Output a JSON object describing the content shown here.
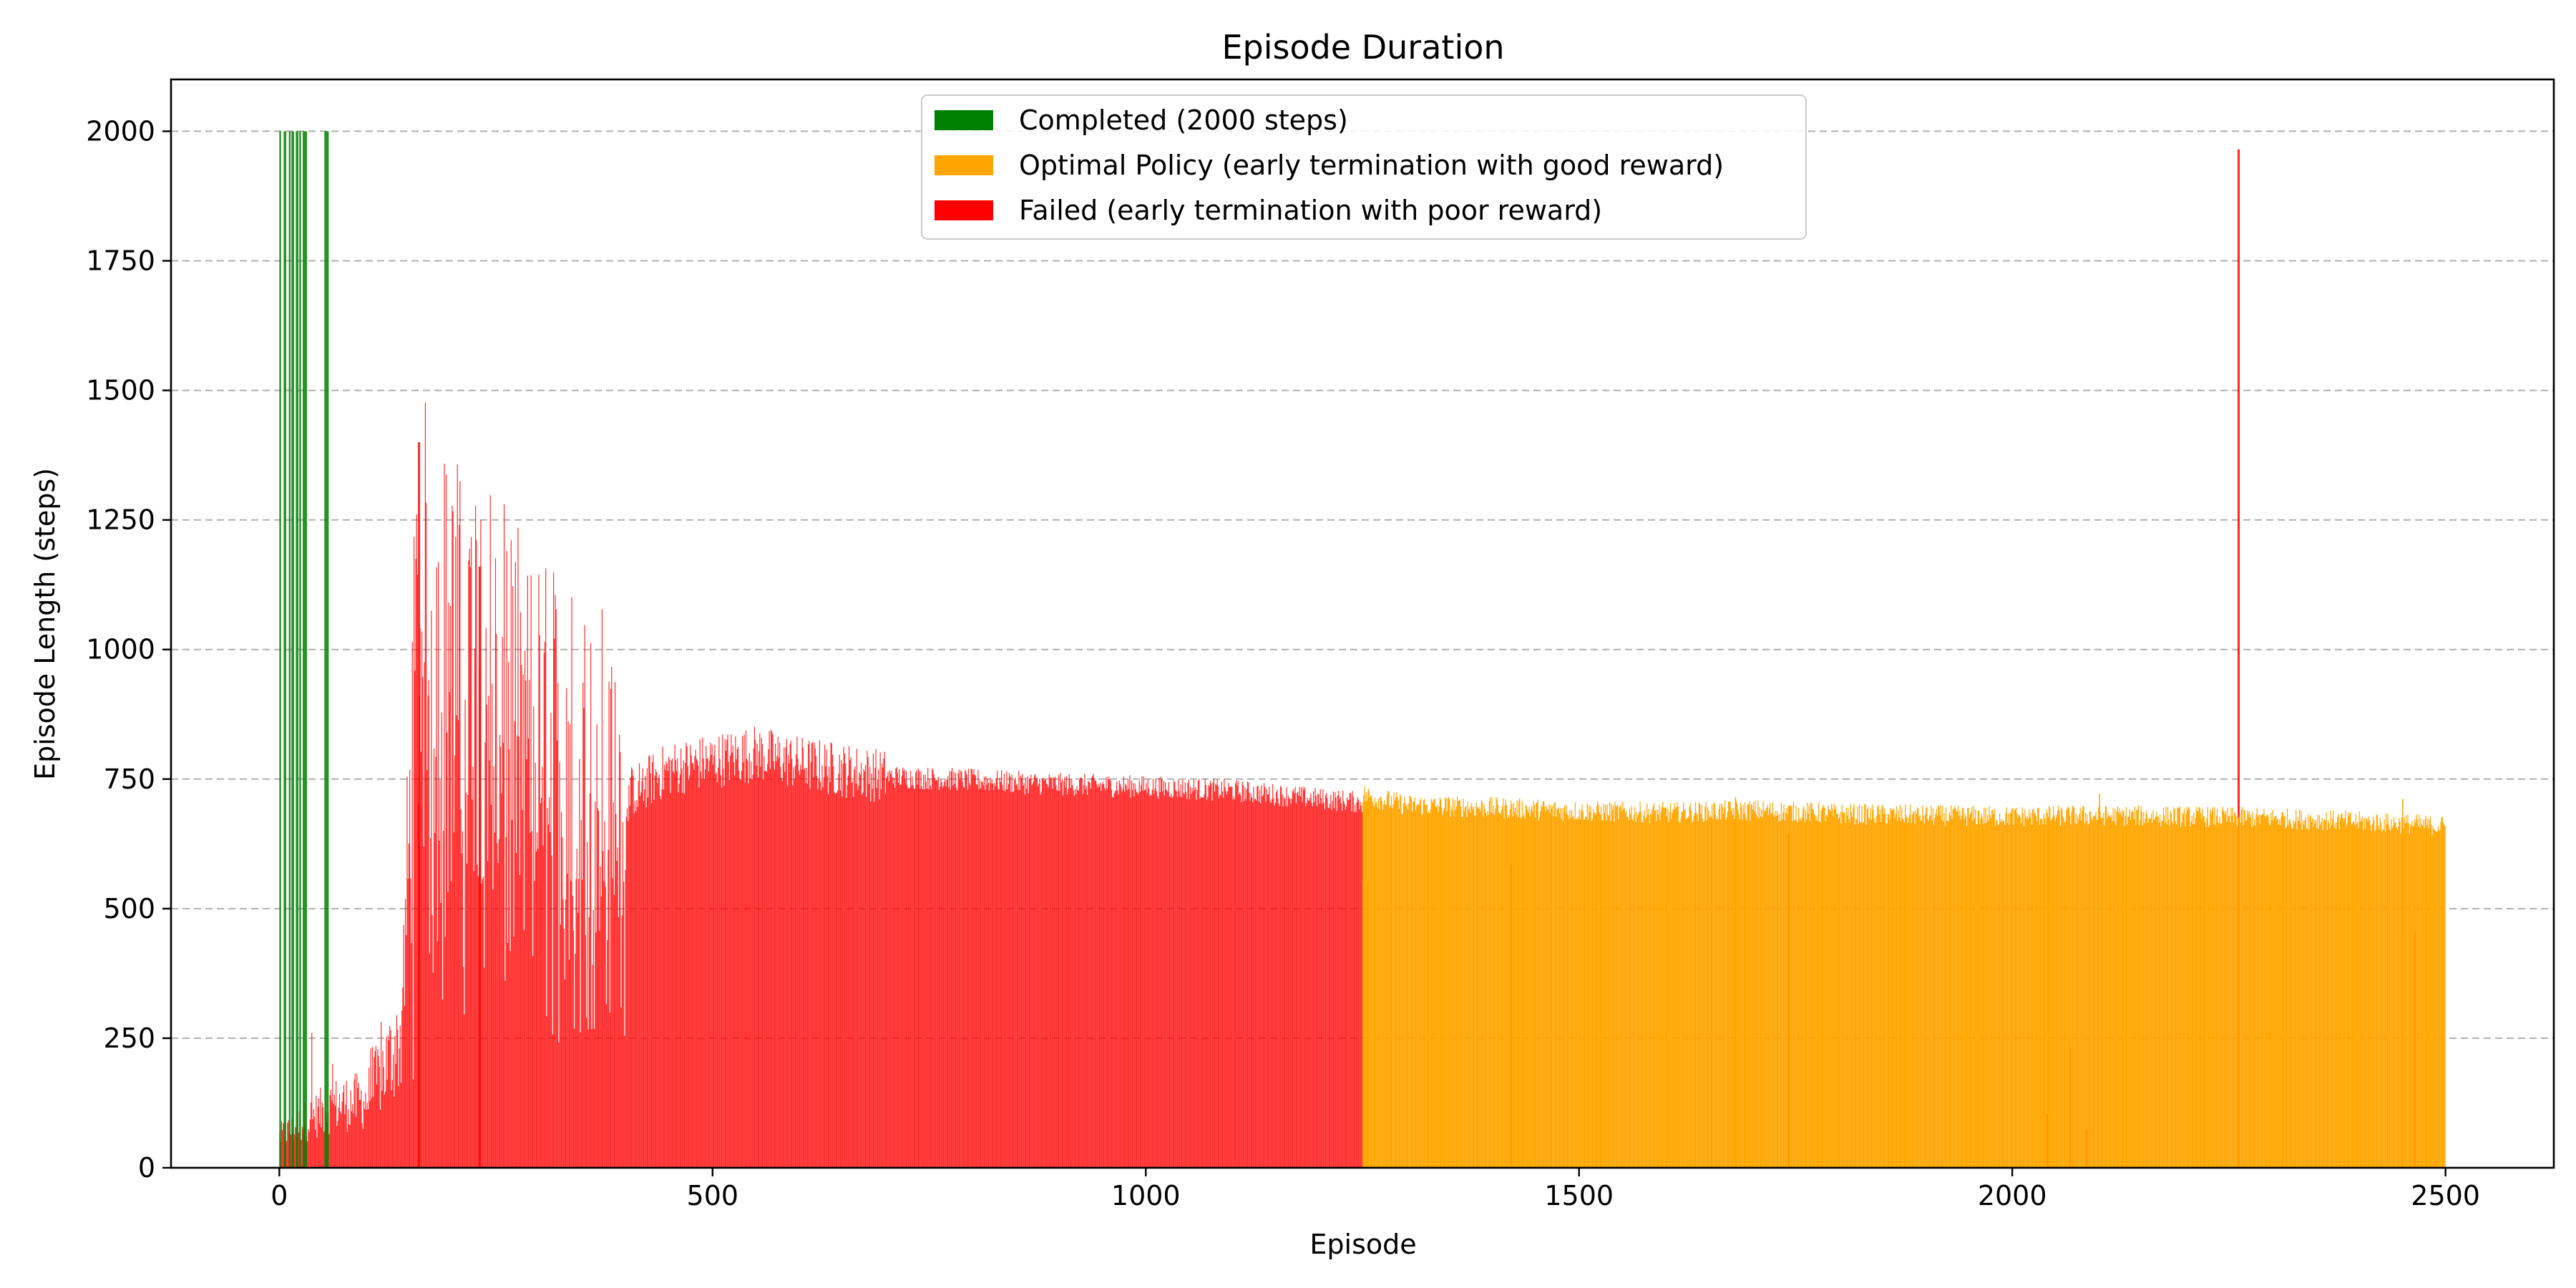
{
  "chart_data": {
    "type": "bar",
    "title": "Episode Duration",
    "xlabel": "Episode",
    "ylabel": "Episode Length (steps)",
    "xlim": [
      -125,
      2625
    ],
    "ylim": [
      0,
      2100
    ],
    "xticks": [
      0,
      500,
      1000,
      1500,
      2000,
      2500
    ],
    "yticks": [
      0,
      250,
      500,
      750,
      1000,
      1250,
      1500,
      1750,
      2000
    ],
    "x_tick_labels": [
      "0",
      "500",
      "1000",
      "1500",
      "2000",
      "2500"
    ],
    "y_tick_labels": [
      "0",
      "250",
      "500",
      "750",
      "1000",
      "1250",
      "1500",
      "1750",
      "2000"
    ],
    "grid": "horizontal-dashed",
    "legend_position": "top-center",
    "episodes": 2500,
    "legend": [
      {
        "label": "Completed (2000 steps)",
        "color": "#008000"
      },
      {
        "label": "Optimal Policy (early termination with good reward)",
        "color": "#FFA500"
      },
      {
        "label": "Failed (early termination with poor reward)",
        "color": "#FF0000"
      }
    ],
    "series": [
      {
        "name": "Completed (2000 steps)",
        "color": "#008000",
        "x_ranges": [
          [
            0,
            2
          ],
          [
            5,
            8
          ],
          [
            11,
            13
          ],
          [
            14,
            17
          ],
          [
            19,
            22
          ],
          [
            23,
            25
          ],
          [
            27,
            32
          ],
          [
            52,
            57
          ]
        ],
        "value": 2000
      },
      {
        "name": "Failed (early termination with poor reward)",
        "color": "#FF0000",
        "trend": [
          [
            0,
            60
          ],
          [
            60,
            120
          ],
          [
            100,
            130
          ],
          [
            140,
            250
          ],
          [
            160,
            1050
          ],
          [
            200,
            950
          ],
          [
            230,
            1000
          ],
          [
            260,
            880
          ],
          [
            300,
            820
          ],
          [
            350,
            780
          ],
          [
            400,
            720
          ],
          [
            450,
            770
          ],
          [
            550,
            800
          ],
          [
            600,
            780
          ],
          [
            700,
            755
          ],
          [
            800,
            748
          ],
          [
            900,
            740
          ],
          [
            1000,
            735
          ],
          [
            1100,
            728
          ],
          [
            1200,
            712
          ],
          [
            1249,
            705
          ]
        ],
        "spikes": [
          [
            160,
            1400
          ],
          [
            230,
            1160
          ],
          [
            1420,
            585
          ],
          [
            1740,
            645
          ],
          [
            2039,
            105
          ],
          [
            2066,
            232
          ],
          [
            2085,
            75
          ],
          [
            2260,
            1965
          ],
          [
            2463,
            455
          ]
        ]
      },
      {
        "name": "Optimal Policy (early termination with good reward)",
        "color": "#FFA500",
        "trend": [
          [
            1250,
            720
          ],
          [
            1300,
            700
          ],
          [
            1400,
            695
          ],
          [
            1500,
            688
          ],
          [
            1600,
            685
          ],
          [
            1700,
            690
          ],
          [
            1800,
            683
          ],
          [
            1900,
            680
          ],
          [
            2000,
            678
          ],
          [
            2100,
            680
          ],
          [
            2200,
            678
          ],
          [
            2300,
            675
          ],
          [
            2400,
            668
          ],
          [
            2499,
            660
          ]
        ],
        "spikes": [
          [
            1255,
            550
          ],
          [
            1680,
            715
          ],
          [
            2100,
            722
          ],
          [
            2450,
            712
          ]
        ]
      }
    ]
  }
}
